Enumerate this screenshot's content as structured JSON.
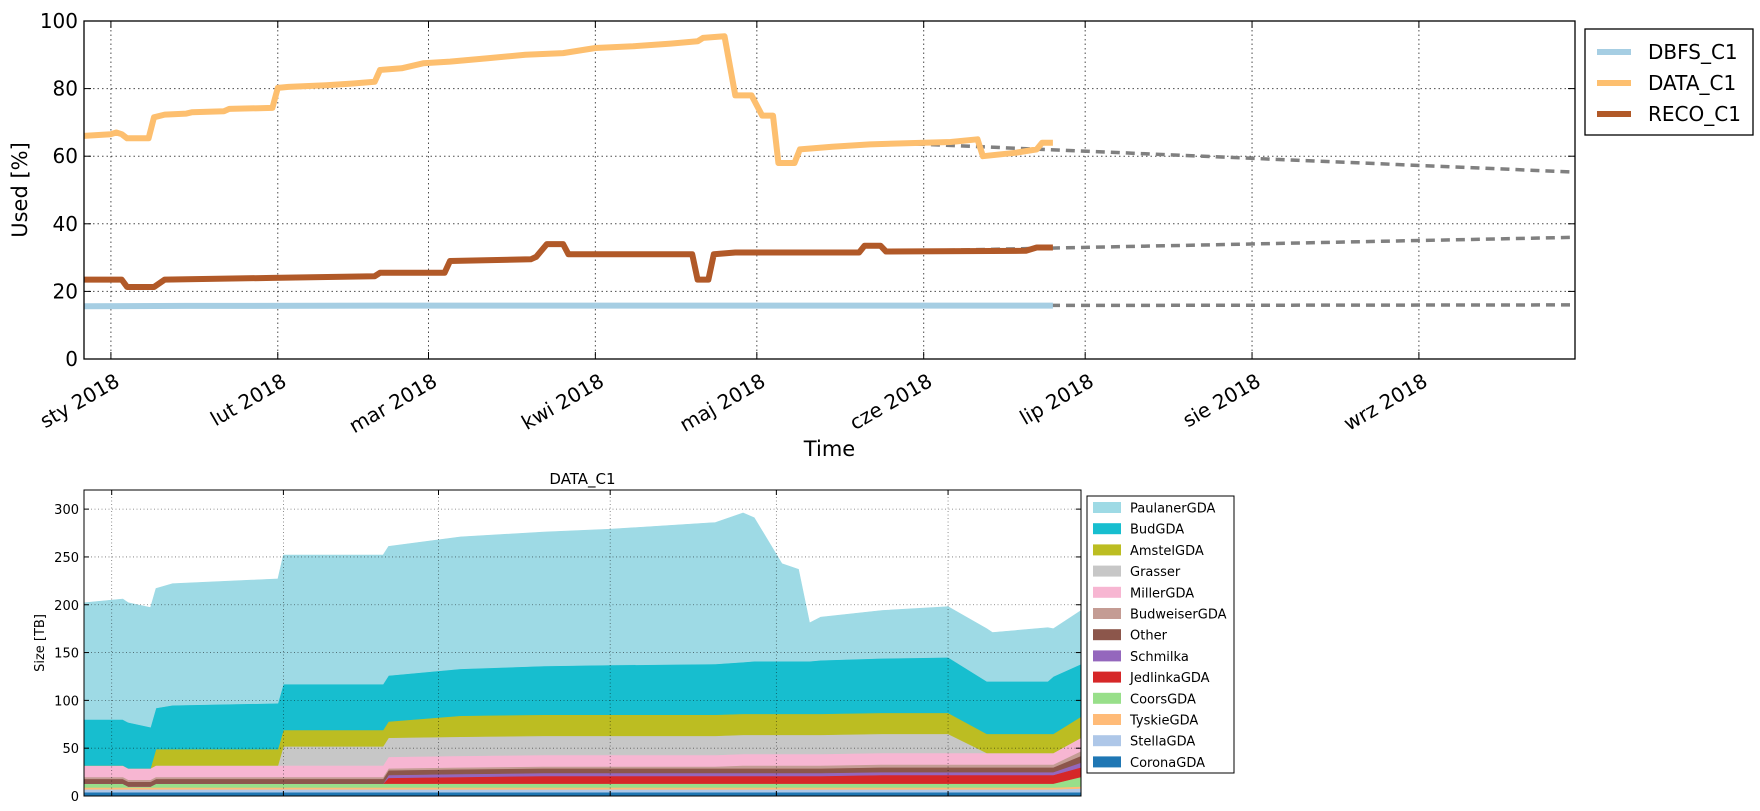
{
  "chart_data": [
    {
      "type": "line",
      "title": "",
      "xlabel": "Time",
      "ylabel": "Used [%]",
      "ylim": [
        0,
        100
      ],
      "yticks": [
        0,
        20,
        40,
        60,
        80,
        100
      ],
      "xlim": [
        "2017-12-27",
        "2018-09-30"
      ],
      "xticks": [
        {
          "date": "2018-01-01",
          "label": "sty 2018"
        },
        {
          "date": "2018-02-01",
          "label": "lut 2018"
        },
        {
          "date": "2018-03-01",
          "label": "mar 2018"
        },
        {
          "date": "2018-04-01",
          "label": "kwi 2018"
        },
        {
          "date": "2018-05-01",
          "label": "maj 2018"
        },
        {
          "date": "2018-06-01",
          "label": "cze 2018"
        },
        {
          "date": "2018-07-01",
          "label": "lip 2018"
        },
        {
          "date": "2018-08-01",
          "label": "sie 2018"
        },
        {
          "date": "2018-09-01",
          "label": "wrz 2018"
        }
      ],
      "grid": true,
      "legend_position": "outside-right",
      "series": [
        {
          "name": "DBFS_C1",
          "color": "#a6cee3",
          "points": [
            [
              "2017-12-27",
              15.6
            ],
            [
              "2018-01-15",
              15.7
            ],
            [
              "2018-03-01",
              15.8
            ],
            [
              "2018-05-01",
              15.8
            ],
            [
              "2018-06-25",
              15.8
            ]
          ]
        },
        {
          "name": "DATA_C1",
          "color": "#fdbf6f",
          "points": [
            [
              "2017-12-27",
              66
            ],
            [
              "2018-01-01",
              66.5
            ],
            [
              "2018-01-02",
              67
            ],
            [
              "2018-01-03",
              66.5
            ],
            [
              "2018-01-04",
              65.3
            ],
            [
              "2018-01-08",
              65.3
            ],
            [
              "2018-01-09",
              71.5
            ],
            [
              "2018-01-11",
              72.3
            ],
            [
              "2018-01-15",
              72.6
            ],
            [
              "2018-01-16",
              73
            ],
            [
              "2018-01-22",
              73.3
            ],
            [
              "2018-01-23",
              74
            ],
            [
              "2018-01-31",
              74.3
            ],
            [
              "2018-02-01",
              80.2
            ],
            [
              "2018-02-03",
              80.5
            ],
            [
              "2018-02-10",
              81
            ],
            [
              "2018-02-15",
              81.5
            ],
            [
              "2018-02-19",
              82
            ],
            [
              "2018-02-20",
              85.5
            ],
            [
              "2018-02-24",
              86
            ],
            [
              "2018-02-28",
              87.5
            ],
            [
              "2018-03-05",
              88
            ],
            [
              "2018-03-12",
              89
            ],
            [
              "2018-03-19",
              90
            ],
            [
              "2018-03-26",
              90.5
            ],
            [
              "2018-04-01",
              92
            ],
            [
              "2018-04-08",
              92.5
            ],
            [
              "2018-04-15",
              93.3
            ],
            [
              "2018-04-20",
              94
            ],
            [
              "2018-04-21",
              95
            ],
            [
              "2018-04-25",
              95.5
            ],
            [
              "2018-04-27",
              78
            ],
            [
              "2018-04-30",
              78
            ],
            [
              "2018-05-02",
              72
            ],
            [
              "2018-05-04",
              72
            ],
            [
              "2018-05-05",
              58
            ],
            [
              "2018-05-08",
              58
            ],
            [
              "2018-05-09",
              62
            ],
            [
              "2018-05-15",
              62.8
            ],
            [
              "2018-05-22",
              63.5
            ],
            [
              "2018-06-01",
              64
            ],
            [
              "2018-06-06",
              64.2
            ],
            [
              "2018-06-11",
              65
            ],
            [
              "2018-06-12",
              60
            ],
            [
              "2018-06-18",
              61
            ],
            [
              "2018-06-22",
              62
            ],
            [
              "2018-06-23",
              64
            ],
            [
              "2018-06-25",
              64
            ]
          ]
        },
        {
          "name": "RECO_C1",
          "color": "#b15928",
          "points": [
            [
              "2017-12-27",
              23.5
            ],
            [
              "2018-01-03",
              23.5
            ],
            [
              "2018-01-04",
              21.3
            ],
            [
              "2018-01-09",
              21.3
            ],
            [
              "2018-01-11",
              23.5
            ],
            [
              "2018-01-31",
              24
            ],
            [
              "2018-02-19",
              24.5
            ],
            [
              "2018-02-20",
              25.5
            ],
            [
              "2018-03-04",
              25.5
            ],
            [
              "2018-03-05",
              29
            ],
            [
              "2018-03-20",
              29.5
            ],
            [
              "2018-03-21",
              30.2
            ],
            [
              "2018-03-23",
              34
            ],
            [
              "2018-03-26",
              34
            ],
            [
              "2018-03-27",
              31
            ],
            [
              "2018-04-19",
              31
            ],
            [
              "2018-04-20",
              23.5
            ],
            [
              "2018-04-22",
              23.5
            ],
            [
              "2018-04-23",
              31
            ],
            [
              "2018-04-27",
              31.5
            ],
            [
              "2018-05-20",
              31.5
            ],
            [
              "2018-05-21",
              33.5
            ],
            [
              "2018-05-24",
              33.5
            ],
            [
              "2018-05-25",
              31.8
            ],
            [
              "2018-06-20",
              32
            ],
            [
              "2018-06-22",
              33
            ],
            [
              "2018-06-25",
              33
            ]
          ]
        }
      ],
      "forecasts": [
        {
          "color": "#808080",
          "points": [
            [
              "2018-05-25",
              64
            ],
            [
              "2018-09-30",
              55.3
            ]
          ]
        },
        {
          "color": "#808080",
          "points": [
            [
              "2018-05-25",
              31.8
            ],
            [
              "2018-09-30",
              36
            ]
          ]
        },
        {
          "color": "#808080",
          "points": [
            [
              "2018-05-25",
              15.8
            ],
            [
              "2018-09-30",
              16
            ]
          ]
        }
      ]
    },
    {
      "type": "area",
      "title": "DATA_C1",
      "xlabel": "",
      "ylabel": "Size [TB]",
      "ylim": [
        0,
        320
      ],
      "yticks": [
        0,
        50,
        100,
        150,
        200,
        250,
        300
      ],
      "xlim": [
        "2017-12-27",
        "2018-06-25"
      ],
      "grid_dates": [
        "2018-01-01",
        "2018-02-01",
        "2018-03-01",
        "2018-04-01",
        "2018-05-01",
        "2018-06-01"
      ],
      "grid": true,
      "legend_position": "outside-right",
      "stacked": true,
      "dates": [
        "2017-12-27",
        "2018-01-03",
        "2018-01-04",
        "2018-01-08",
        "2018-01-09",
        "2018-01-12",
        "2018-01-31",
        "2018-02-01",
        "2018-02-19",
        "2018-02-20",
        "2018-03-05",
        "2018-03-20",
        "2018-04-01",
        "2018-04-20",
        "2018-04-25",
        "2018-04-27",
        "2018-05-02",
        "2018-05-05",
        "2018-05-07",
        "2018-05-09",
        "2018-05-20",
        "2018-06-01",
        "2018-06-08",
        "2018-06-09",
        "2018-06-19",
        "2018-06-20",
        "2018-06-25"
      ],
      "series": [
        {
          "name": "CoronaGDA",
          "color": "#1f77b4",
          "values": [
            4,
            4,
            4,
            4,
            4,
            4,
            4,
            4,
            4,
            4,
            4,
            4,
            4,
            4,
            4,
            4,
            4,
            4,
            4,
            4,
            4,
            4,
            4,
            4,
            4,
            4,
            4
          ]
        },
        {
          "name": "StellaGDA",
          "color": "#aec7e8",
          "values": [
            3,
            3,
            3,
            3,
            3,
            3,
            3,
            3,
            3,
            3,
            3,
            3,
            3,
            3,
            3,
            3,
            3,
            3,
            3,
            3,
            3,
            3,
            3,
            3,
            3,
            3,
            4
          ]
        },
        {
          "name": "TyskieGDA",
          "color": "#ffbb78",
          "values": [
            2,
            2,
            2,
            2,
            2,
            2,
            2,
            2,
            2,
            2,
            2,
            2,
            2,
            2,
            2,
            2,
            2,
            2,
            2,
            2,
            2,
            2,
            2,
            2,
            2,
            2,
            2
          ]
        },
        {
          "name": "CoorsGDA",
          "color": "#98df8a",
          "values": [
            4,
            4,
            1,
            1,
            4,
            4,
            4,
            4,
            4,
            4,
            4,
            4,
            4,
            4,
            4,
            4,
            4,
            4,
            4,
            4,
            4,
            4,
            4,
            4,
            4,
            4,
            10
          ]
        },
        {
          "name": "JedlinkaGDA",
          "color": "#d62728",
          "values": [
            0,
            0,
            0,
            0,
            0,
            0,
            0,
            0,
            0,
            6,
            7,
            8,
            8,
            8,
            8,
            8,
            8,
            8,
            8,
            8,
            9,
            9,
            9,
            9,
            9,
            9,
            10
          ]
        },
        {
          "name": "Schmilka",
          "color": "#9467bd",
          "values": [
            0,
            0,
            0,
            0,
            0,
            0,
            0,
            0,
            0,
            3,
            3,
            3,
            3,
            3,
            3,
            3,
            3,
            3,
            3,
            3,
            3,
            3,
            3,
            3,
            3,
            3,
            5
          ]
        },
        {
          "name": "Other",
          "color": "#8c564b",
          "values": [
            5,
            5,
            5,
            5,
            5,
            5,
            5,
            5,
            5,
            5,
            5,
            5,
            5,
            5,
            5,
            5,
            5,
            5,
            5,
            5,
            5,
            5,
            5,
            5,
            5,
            5,
            7
          ]
        },
        {
          "name": "BudweiserGDA",
          "color": "#c49c94",
          "values": [
            2,
            2,
            2,
            2,
            2,
            2,
            2,
            2,
            2,
            2,
            2,
            2,
            2,
            2,
            3,
            3,
            3,
            3,
            3,
            3,
            3,
            3,
            3,
            3,
            3,
            3,
            5
          ]
        },
        {
          "name": "MillerGDA",
          "color": "#f7b6d2",
          "values": [
            12,
            12,
            12,
            12,
            12,
            12,
            12,
            12,
            12,
            12,
            12,
            12,
            12,
            12,
            12,
            12,
            12,
            12,
            12,
            12,
            12,
            12,
            12,
            12,
            12,
            12,
            14
          ]
        },
        {
          "name": "Grasser",
          "color": "#c7c7c7",
          "values": [
            0,
            0,
            0,
            0,
            0,
            0,
            0,
            20,
            20,
            20,
            20,
            20,
            20,
            20,
            20,
            20,
            20,
            20,
            20,
            20,
            20,
            20,
            0,
            0,
            0,
            0,
            0
          ]
        },
        {
          "name": "AmstelGDA",
          "color": "#bcbd22",
          "values": [
            0,
            0,
            0,
            0,
            17,
            17,
            17,
            17,
            17,
            17,
            22,
            22,
            22,
            22,
            22,
            22,
            22,
            22,
            22,
            22,
            22,
            22,
            20,
            20,
            20,
            20,
            22
          ]
        },
        {
          "name": "BudGDA",
          "color": "#17becf",
          "values": [
            48,
            48,
            48,
            43,
            43,
            46,
            48,
            48,
            48,
            48,
            49,
            51,
            52,
            53,
            54,
            55,
            55,
            55,
            55,
            56,
            57,
            58,
            55,
            55,
            55,
            60,
            55
          ]
        },
        {
          "name": "PaulanerGDA",
          "color": "#9edae5",
          "values": [
            122,
            126,
            125,
            125,
            125,
            127,
            130,
            135,
            135,
            135,
            138,
            140,
            142,
            148,
            156,
            150,
            102,
            96,
            40,
            45,
            50,
            53,
            55,
            51,
            56,
            50,
            56
          ]
        }
      ],
      "legend_order": [
        "PaulanerGDA",
        "BudGDA",
        "AmstelGDA",
        "Grasser",
        "MillerGDA",
        "BudweiserGDA",
        "Other",
        "Schmilka",
        "JedlinkaGDA",
        "CoorsGDA",
        "TyskieGDA",
        "StellaGDA",
        "CoronaGDA"
      ]
    }
  ]
}
